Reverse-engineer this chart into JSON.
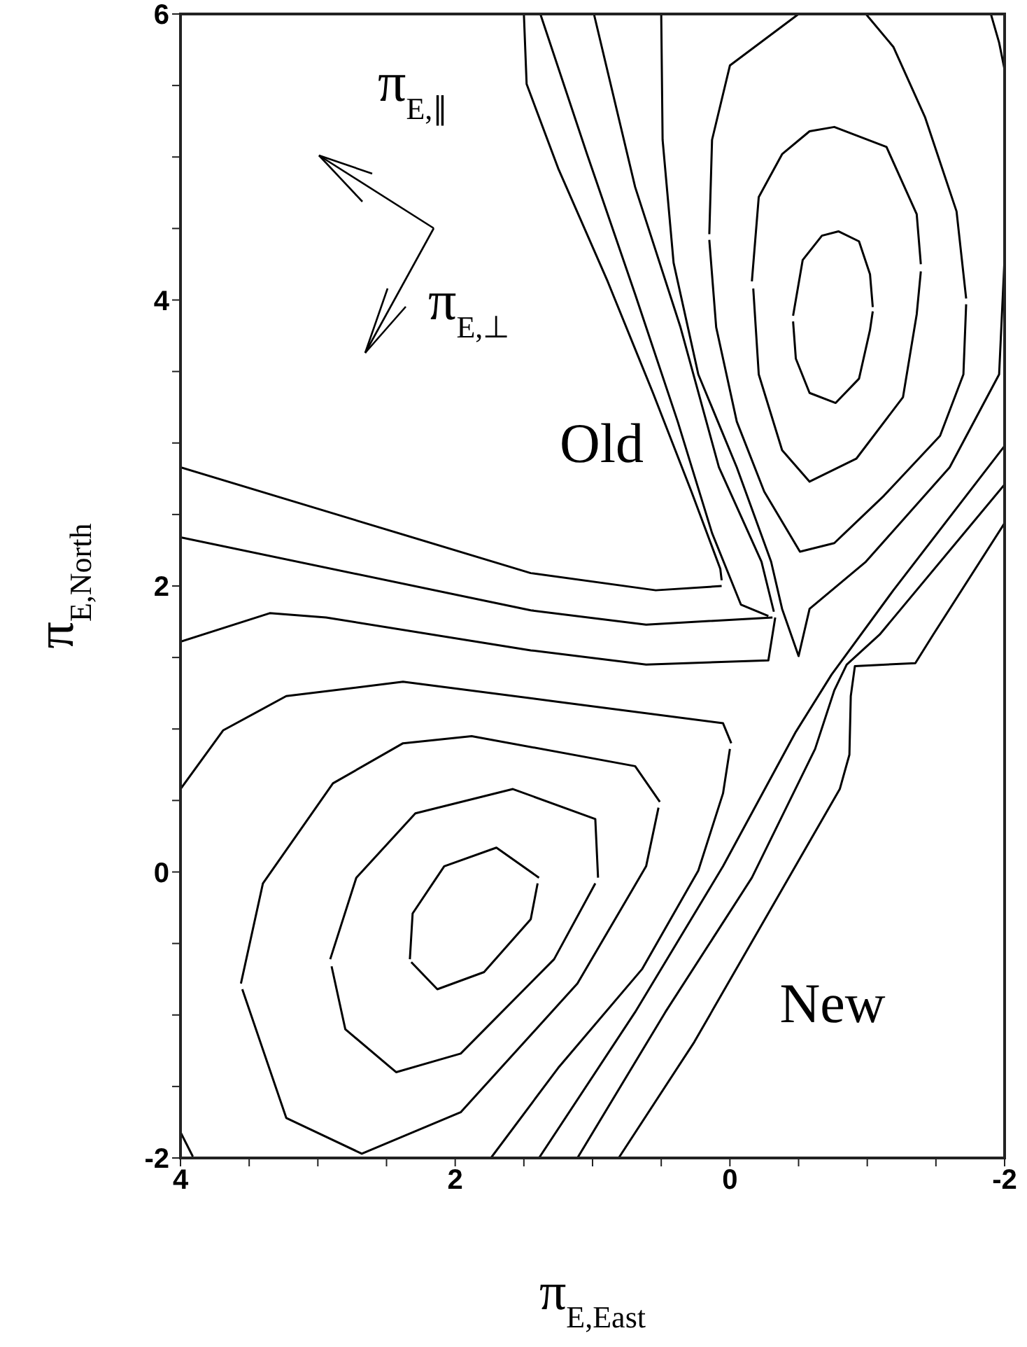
{
  "chart_data": {
    "type": "line",
    "xlabel": "π$_{E,East}$",
    "ylabel": "π$_{E,North}$",
    "xlim": [
      4,
      -2
    ],
    "ylim": [
      -2,
      6
    ],
    "xticks": [
      4,
      {
        "value": 3.5,
        "label": null
      },
      {
        "value": 3,
        "label": null
      },
      {
        "value": 2.5,
        "label": null
      },
      2,
      {
        "value": 1.5,
        "label": null
      },
      {
        "value": 1,
        "label": null
      },
      {
        "value": 0.5,
        "label": null
      },
      0,
      {
        "value": -0.5,
        "label": null
      },
      {
        "value": -1,
        "label": null
      },
      {
        "value": -1.5,
        "label": null
      },
      -2
    ],
    "yticks": [
      -2,
      {
        "value": -1.5,
        "label": null
      },
      {
        "value": -1,
        "label": null
      },
      {
        "value": -0.5,
        "label": null
      },
      0,
      {
        "value": 0.5,
        "label": null
      },
      {
        "value": 1,
        "label": null
      },
      {
        "value": 1.5,
        "label": null
      },
      2,
      {
        "value": 2.5,
        "label": null
      },
      {
        "value": 3,
        "label": null
      },
      {
        "value": 3.5,
        "label": null
      },
      4,
      {
        "value": 4.5,
        "label": null
      },
      {
        "value": 5,
        "label": null
      },
      {
        "value": 5.5,
        "label": null
      },
      6
    ],
    "marker": "none",
    "line_style": "solid",
    "annotations": [
      "Old",
      "New",
      "π$_{E,∥}$",
      "π$_{E,⊥}$"
    ],
    "series": [
      {
        "color": "#000000",
        "x": [
          -0.46,
          -0.53,
          -0.67,
          -0.79,
          -0.94,
          -1.02,
          -1.04
        ],
        "values": [
          3.89,
          4.28,
          4.45,
          4.48,
          4.41,
          4.18,
          3.95
        ]
      },
      {
        "color": "#000000",
        "x": [
          -1.04,
          -1.02,
          -0.94,
          -0.77,
          -0.58,
          -0.48,
          -0.46
        ],
        "values": [
          3.92,
          3.79,
          3.45,
          3.28,
          3.35,
          3.59,
          3.85
        ]
      },
      {
        "color": "#000000",
        "x": [
          -0.16,
          -0.21,
          -0.38,
          -0.58,
          -0.76,
          -1.14,
          -1.36,
          -1.39
        ],
        "values": [
          4.13,
          4.72,
          5.02,
          5.18,
          5.21,
          5.07,
          4.6,
          4.25
        ]
      },
      {
        "color": "#000000",
        "x": [
          -1.39,
          -1.36,
          -1.26,
          -0.92,
          -0.58,
          -0.38,
          -0.21,
          -0.17
        ],
        "values": [
          4.2,
          3.9,
          3.32,
          2.89,
          2.73,
          2.95,
          3.48,
          4.08
        ]
      },
      {
        "color": "#000000",
        "x": [
          -0.5,
          0.0,
          0.13,
          0.15
        ],
        "values": [
          6,
          5.64,
          5.12,
          4.46
        ]
      },
      {
        "color": "#000000",
        "x": [
          0.15,
          0.1,
          -0.05,
          -0.25,
          -0.51,
          -0.76,
          -1.12,
          -1.53,
          -1.7,
          -1.72
        ],
        "values": [
          4.42,
          3.81,
          3.15,
          2.66,
          2.24,
          2.3,
          2.63,
          3.05,
          3.48,
          3.97
        ]
      },
      {
        "color": "#000000",
        "x": [
          -1.72,
          -1.65,
          -1.42,
          -1.19,
          -0.99
        ],
        "values": [
          4.01,
          4.62,
          5.28,
          5.77,
          6
        ]
      },
      {
        "color": "#000000",
        "x": [
          -1.9,
          -1.96,
          -2.0
        ],
        "values": [
          6,
          5.8,
          5.61
        ]
      },
      {
        "color": "#000000",
        "x": [
          -2.0,
          -1.96,
          -1.6,
          -0.99,
          -0.58,
          -0.5,
          -0.38,
          -0.3,
          -0.05,
          0.23,
          0.41,
          0.49,
          0.5
        ],
        "values": [
          4.3,
          3.48,
          2.83,
          2.17,
          1.84,
          1.51,
          1.84,
          2.17,
          2.83,
          3.48,
          4.26,
          5.12,
          6
        ]
      },
      {
        "color": "#000000",
        "x": [
          4,
          1.45,
          0.54,
          0.06
        ],
        "values": [
          2.83,
          2.09,
          1.97,
          2.0
        ]
      },
      {
        "color": "#000000",
        "x": [
          0.06,
          0.07,
          0.28,
          0.56,
          0.89,
          1.25,
          1.48,
          1.5
        ],
        "values": [
          2.04,
          2.12,
          2.66,
          3.35,
          4.13,
          4.92,
          5.51,
          6
        ]
      },
      {
        "color": "#000000",
        "x": [
          4,
          1.45,
          0.61,
          -0.31
        ],
        "values": [
          2.34,
          1.83,
          1.73,
          1.78
        ]
      },
      {
        "color": "#000000",
        "x": [
          -0.28,
          -0.08,
          0.13,
          0.38,
          0.69,
          1.04,
          1.38
        ],
        "values": [
          1.79,
          1.87,
          2.37,
          3.15,
          4.04,
          5.02,
          6
        ]
      },
      {
        "color": "#000000",
        "x": [
          4,
          3.35,
          2.94,
          1.45,
          0.61,
          -0.28,
          -0.33
        ],
        "values": [
          1.61,
          1.81,
          1.78,
          1.55,
          1.45,
          1.48,
          1.78
        ]
      },
      {
        "color": "#000000",
        "x": [
          -0.32,
          -0.23,
          0.08,
          0.36,
          0.69,
          0.99
        ],
        "values": [
          1.82,
          2.17,
          2.83,
          3.81,
          4.79,
          6
        ]
      },
      {
        "color": "#000000",
        "x": [
          4,
          3.69,
          3.23,
          2.38,
          1.25,
          0.05,
          -0.01
        ],
        "values": [
          0.58,
          0.99,
          1.23,
          1.33,
          1.19,
          1.04,
          0.9
        ]
      },
      {
        "color": "#000000",
        "x": [
          0.0,
          0.05,
          0.23,
          0.64,
          1.25,
          1.74
        ],
        "values": [
          0.86,
          0.55,
          0.01,
          -0.68,
          -1.37,
          -2
        ]
      },
      {
        "color": "#000000",
        "x": [
          2.33,
          2.31,
          2.08,
          1.7,
          1.39
        ],
        "values": [
          -0.61,
          -0.29,
          0.04,
          0.17,
          -0.04
        ]
      },
      {
        "color": "#000000",
        "x": [
          1.4,
          1.45,
          1.79,
          2.13,
          2.32
        ],
        "values": [
          -0.08,
          -0.33,
          -0.7,
          -0.82,
          -0.63
        ]
      },
      {
        "color": "#000000",
        "x": [
          2.91,
          2.72,
          2.29,
          1.58,
          0.98,
          0.96
        ],
        "values": [
          -0.61,
          -0.04,
          0.41,
          0.58,
          0.37,
          -0.04
        ]
      },
      {
        "color": "#000000",
        "x": [
          0.98,
          1.28,
          1.96,
          2.43,
          2.8,
          2.9
        ],
        "values": [
          -0.08,
          -0.61,
          -1.27,
          -1.4,
          -1.1,
          -0.66
        ]
      },
      {
        "color": "#000000",
        "x": [
          3.56,
          3.4,
          2.89,
          2.38,
          1.88,
          0.69,
          0.51
        ],
        "values": [
          -0.78,
          -0.08,
          0.62,
          0.9,
          0.95,
          0.74,
          0.49
        ]
      },
      {
        "color": "#000000",
        "x": [
          0.52,
          0.61,
          1.11,
          1.96,
          2.68,
          3.23,
          3.55
        ],
        "values": [
          0.45,
          0.04,
          -0.78,
          -1.68,
          -1.97,
          -1.72,
          -0.82
        ]
      },
      {
        "color": "#000000",
        "x": [
          4,
          3.91
        ],
        "values": [
          -1.82,
          -1.99
        ]
      },
      {
        "color": "#000000",
        "x": [
          1.39,
          0.69,
          0.05,
          -0.48,
          -0.74,
          -1.19,
          -2.0
        ],
        "values": [
          -2,
          -0.98,
          0.04,
          0.98,
          1.38,
          1.97,
          2.98
        ]
      },
      {
        "color": "#000000",
        "x": [
          1.11,
          0.47,
          -0.16,
          -0.62,
          -0.76,
          -0.85,
          -1.09,
          -2.0
        ],
        "values": [
          -2,
          -0.98,
          -0.04,
          0.86,
          1.27,
          1.45,
          1.66,
          2.71
        ]
      },
      {
        "color": "#000000",
        "x": [
          0.81,
          0.26,
          -0.8,
          -0.87,
          -0.88,
          -0.91,
          -1.35,
          -1.48,
          -2.0
        ],
        "values": [
          -2,
          -1.19,
          0.58,
          0.82,
          1.23,
          1.44,
          1.46,
          1.66,
          2.44
        ]
      }
    ]
  }
}
